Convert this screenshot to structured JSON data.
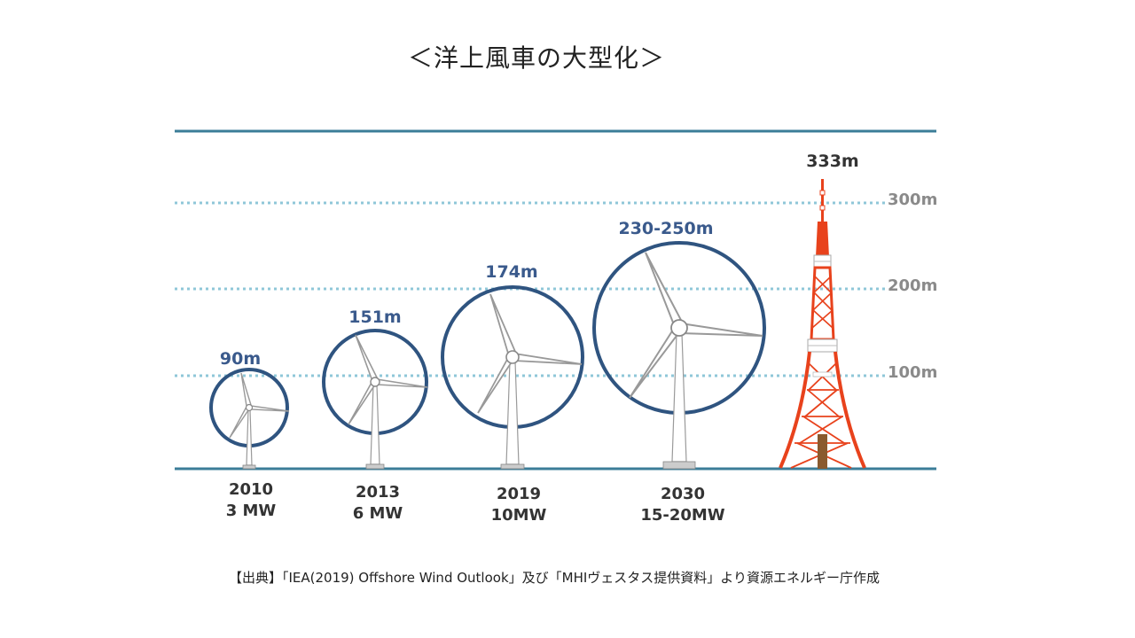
{
  "title": "＜洋上風車の大型化＞",
  "turbines": [
    {
      "height": "90m",
      "year": "2010",
      "capacity": "3 MW"
    },
    {
      "height": "151m",
      "year": "2013",
      "capacity": "6 MW"
    },
    {
      "height": "174m",
      "year": "2019",
      "capacity": "10MW"
    },
    {
      "height": "230-250m",
      "year": "2030",
      "capacity": "15-20MW"
    }
  ],
  "tower": {
    "height": "333m"
  },
  "scale_lines": [
    "300m",
    "200m",
    "100m"
  ],
  "source": "【出典】「IEA(2019) Offshore Wind Outlook」及び「MHIヴェスタス提供資料」より資源エネルギー庁作成",
  "colors": {
    "frame_line": "#3b7d98",
    "dotted_line": "#8fc7d8",
    "rotor_circle": "#2f5480",
    "height_label": "#3a5a8c",
    "scale_label": "#8a8a8a",
    "tower_orange": "#e8421c"
  }
}
